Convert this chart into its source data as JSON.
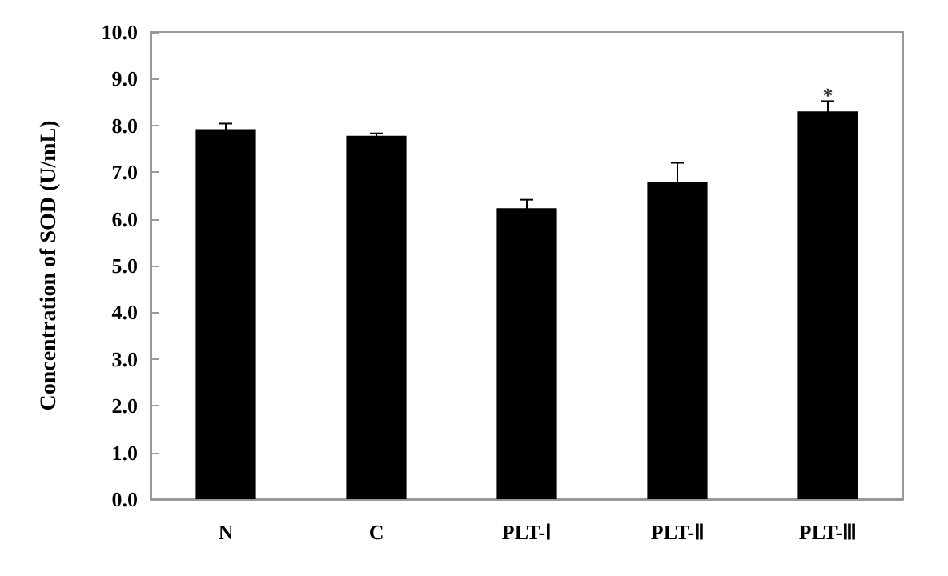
{
  "chart_data": {
    "type": "bar",
    "ylabel": "Concentration of SOD (U/mL)",
    "categories": [
      "N",
      "C",
      "PLT-Ⅰ",
      "PLT-Ⅱ",
      "PLT-Ⅲ"
    ],
    "values": [
      7.92,
      7.78,
      6.23,
      6.78,
      8.3
    ],
    "errors": [
      0.12,
      0.05,
      0.18,
      0.42,
      0.22
    ],
    "color": "#000000",
    "ylim": [
      0,
      10
    ],
    "yticks": [
      {
        "value": 0,
        "label": "0.0"
      },
      {
        "value": 1,
        "label": "1.0"
      },
      {
        "value": 2,
        "label": "2.0"
      },
      {
        "value": 3,
        "label": "3.0"
      },
      {
        "value": 4,
        "label": "4.0"
      },
      {
        "value": 5,
        "label": "5.0"
      },
      {
        "value": 6,
        "label": "6.0"
      },
      {
        "value": 7,
        "label": "7.0"
      },
      {
        "value": 8,
        "label": "8.0"
      },
      {
        "value": 9,
        "label": "9.0"
      },
      {
        "value": 10,
        "label": "10.0"
      }
    ],
    "annotations": [
      {
        "text": "*",
        "x": "PLT-Ⅲ",
        "y": 8.65
      }
    ],
    "grid": false
  }
}
